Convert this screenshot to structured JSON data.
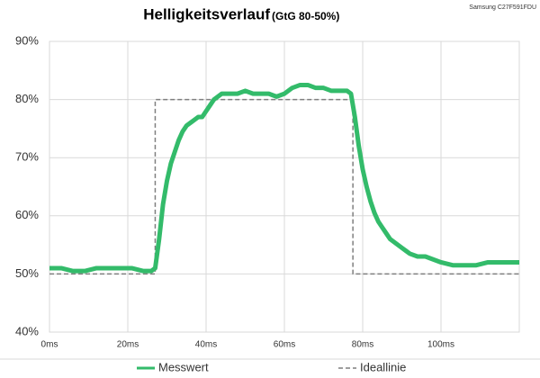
{
  "chart_data": {
    "type": "line",
    "title": "Helligkeitsverlauf",
    "subtitle": "(GtG 80-50%)",
    "annotation": "Samsung C27F591FDU",
    "xlim": [
      0,
      120
    ],
    "ylim": [
      40,
      90
    ],
    "xticks": [
      {
        "value": 0,
        "label": "0ms"
      },
      {
        "value": 20,
        "label": "20ms"
      },
      {
        "value": 40,
        "label": "40ms"
      },
      {
        "value": 60,
        "label": "60ms"
      },
      {
        "value": 80,
        "label": "80ms"
      },
      {
        "value": 100,
        "label": "100ms"
      }
    ],
    "yticks": [
      {
        "value": 40,
        "label": "40%"
      },
      {
        "value": 50,
        "label": "50%"
      },
      {
        "value": 60,
        "label": "60%"
      },
      {
        "value": 70,
        "label": "70%"
      },
      {
        "value": 80,
        "label": "80%"
      },
      {
        "value": 90,
        "label": "90%"
      }
    ],
    "grid": true,
    "legend": "bottom",
    "series": [
      {
        "name": "Messwert",
        "color": "#33bb6a",
        "style": "solid",
        "x": [
          0,
          3,
          6,
          9,
          12,
          15,
          18,
          21,
          24,
          26,
          27,
          28,
          29,
          30,
          31,
          32,
          33,
          34,
          35,
          36,
          37,
          38,
          39,
          40,
          41,
          42,
          43,
          44,
          46,
          48,
          50,
          52,
          54,
          56,
          58,
          60,
          62,
          64,
          66,
          68,
          70,
          72,
          74,
          76,
          77,
          78,
          79,
          80,
          81,
          82,
          83,
          84,
          85,
          86,
          87,
          88,
          89,
          90,
          91,
          92,
          94,
          96,
          98,
          100,
          103,
          106,
          109,
          112,
          115,
          118,
          120
        ],
        "values": [
          51,
          51,
          50.5,
          50.5,
          51,
          51,
          51,
          51,
          50.5,
          50.5,
          51,
          56,
          62,
          66,
          69,
          71,
          73,
          74.5,
          75.5,
          76,
          76.5,
          77,
          77,
          78,
          79,
          80,
          80.5,
          81,
          81,
          81,
          81.5,
          81,
          81,
          81,
          80.5,
          81,
          82,
          82.5,
          82.5,
          82,
          82,
          81.5,
          81.5,
          81.5,
          81,
          77,
          72,
          68,
          65,
          62.5,
          60.5,
          59,
          58,
          57,
          56,
          55.5,
          55,
          54.5,
          54,
          53.5,
          53,
          53,
          52.5,
          52,
          51.5,
          51.5,
          51.5,
          52,
          52,
          52,
          52
        ]
      },
      {
        "name": "Ideallinie",
        "color": "#7f7f7f",
        "style": "dashed",
        "x": [
          0,
          27,
          27,
          77.5,
          77.5,
          120
        ],
        "values": [
          50,
          50,
          80,
          80,
          50,
          50
        ]
      }
    ]
  }
}
